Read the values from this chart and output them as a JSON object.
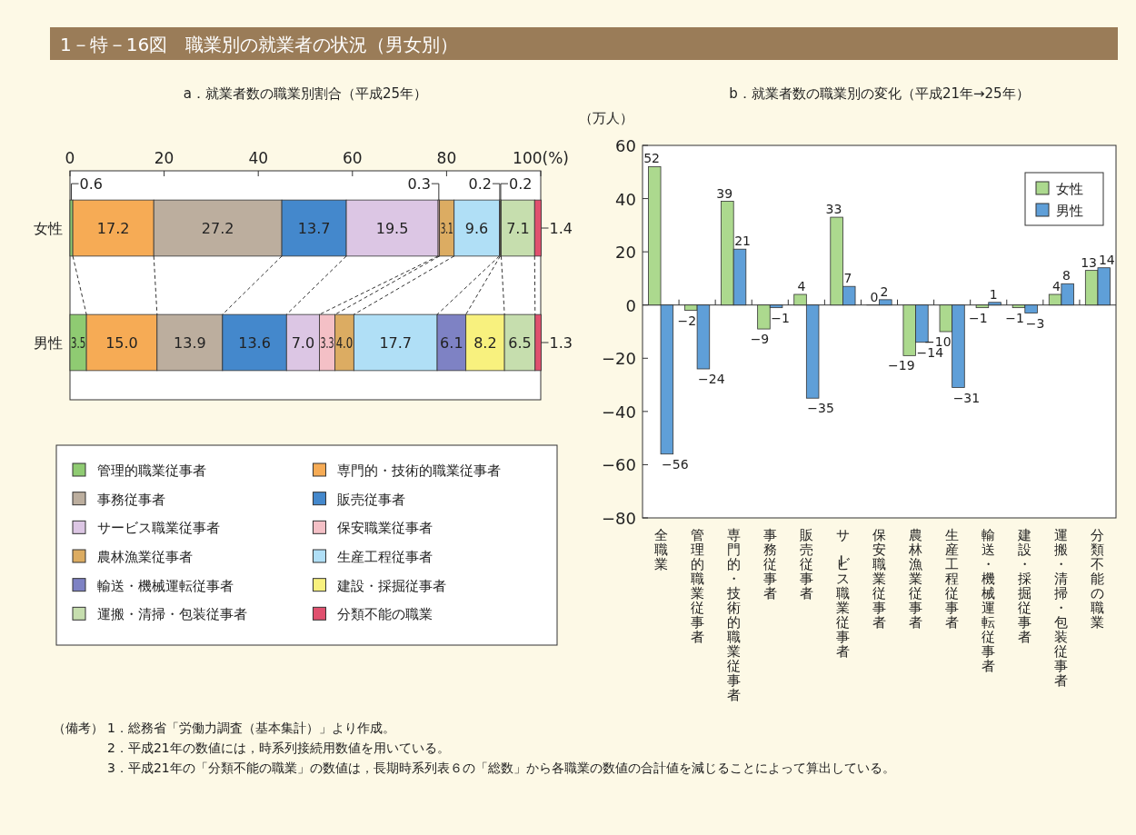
{
  "chart_data": [
    {
      "type": "bar",
      "title": "1－特－16図　職業別の就業者の状況（男女別）",
      "subtitle": "a．就業者数の職業別割合（平成25年）",
      "orientation": "horizontal",
      "stacked": true,
      "categories": [
        "女性",
        "男性"
      ],
      "xlim": [
        0,
        100
      ],
      "xticks": [
        0,
        20,
        40,
        60,
        80,
        {
          "value": 100,
          "label": "100(%)"
        }
      ],
      "legend": "bottom",
      "series": [
        {
          "name": "管理的職業従事者",
          "color": "#8fcb72",
          "values": [
            0.6,
            3.5
          ],
          "value_labels": [
            "0.6",
            "3.5"
          ]
        },
        {
          "name": "専門的・技術的職業従事者",
          "color": "#f6ab55",
          "values": [
            17.2,
            15.0
          ],
          "value_labels": [
            "17.2",
            "15.0"
          ]
        },
        {
          "name": "事務従事者",
          "color": "#bcae9e",
          "values": [
            27.2,
            13.9
          ],
          "value_labels": [
            "27.2",
            "13.9"
          ]
        },
        {
          "name": "販売従事者",
          "color": "#4488cc",
          "values": [
            13.7,
            13.6
          ],
          "value_labels": [
            "13.7",
            "13.6"
          ]
        },
        {
          "name": "サービス職業従事者",
          "color": "#dcc6e4",
          "values": [
            19.5,
            7.0
          ],
          "value_labels": [
            "19.5",
            "7.0"
          ]
        },
        {
          "name": "保安職業従事者",
          "color": "#f4c0c6",
          "values": [
            0.3,
            3.3
          ],
          "value_labels": [
            "0.3",
            "3.3"
          ]
        },
        {
          "name": "農林漁業従事者",
          "color": "#dcac62",
          "values": [
            3.1,
            4.0
          ],
          "value_labels": [
            "3.1",
            "4.0"
          ]
        },
        {
          "name": "生産工程従事者",
          "color": "#b0dff6",
          "values": [
            9.6,
            17.7
          ],
          "value_labels": [
            "9.6",
            "17.7"
          ]
        },
        {
          "name": "輸送・機械運転従事者",
          "color": "#7e82c4",
          "values": [
            0.2,
            6.1
          ],
          "value_labels": [
            "0.2",
            "6.1"
          ]
        },
        {
          "name": "建設・採掘従事者",
          "color": "#f8f17e",
          "values": [
            0.2,
            8.2
          ],
          "value_labels": [
            "0.2",
            "8.2"
          ]
        },
        {
          "name": "運搬・清掃・包装従事者",
          "color": "#c6deae",
          "values": [
            7.1,
            6.5
          ],
          "value_labels": [
            "7.1",
            "6.5"
          ]
        },
        {
          "name": "分類不能の職業",
          "color": "#e0506e",
          "values": [
            1.4,
            1.3
          ],
          "value_labels": [
            "1.4",
            "1.3"
          ]
        }
      ],
      "annotations": [
        "（備考）",
        "1．総務省「労働力調査（基本集計）」より作成。",
        "2．平成21年の数値には，時系列接続用数値を用いている。",
        "3．平成21年の「分類不能の職業」の数値は，長期時系列表６の「総数」から各職業の数値の合計値を減じることによって算出している。"
      ]
    },
    {
      "type": "bar",
      "subtitle": "b．就業者数の職業別の変化（平成21年→25年）",
      "ylabel": "（万人）",
      "categories": [
        "全職業",
        "管理的職業従事者",
        "専門的・技術的職業従事者",
        "事務従事者",
        "販売従事者",
        "サービス職業従事者",
        "保安職業従事者",
        "農林漁業従事者",
        "生産工程従事者",
        "輸送・機械運転従事者",
        "建設・採掘従事者",
        "運搬・清掃・包装従事者",
        "分類不能の職業"
      ],
      "ylim": [
        -80,
        60
      ],
      "yticks": [
        -80,
        -60,
        -40,
        -20,
        0,
        20,
        40,
        60
      ],
      "legend": "top right",
      "data_labels": true,
      "series": [
        {
          "name": "女性",
          "color": "#acd98e",
          "values": [
            52,
            -2,
            39,
            -9,
            4,
            33,
            0,
            -19,
            -10,
            -1,
            -1,
            4,
            13
          ]
        },
        {
          "name": "男性",
          "color": "#5f9fd8",
          "values": [
            -56,
            -24,
            21,
            -1,
            -35,
            7,
            2,
            -14,
            -31,
            1,
            -3,
            8,
            14
          ]
        }
      ]
    }
  ]
}
